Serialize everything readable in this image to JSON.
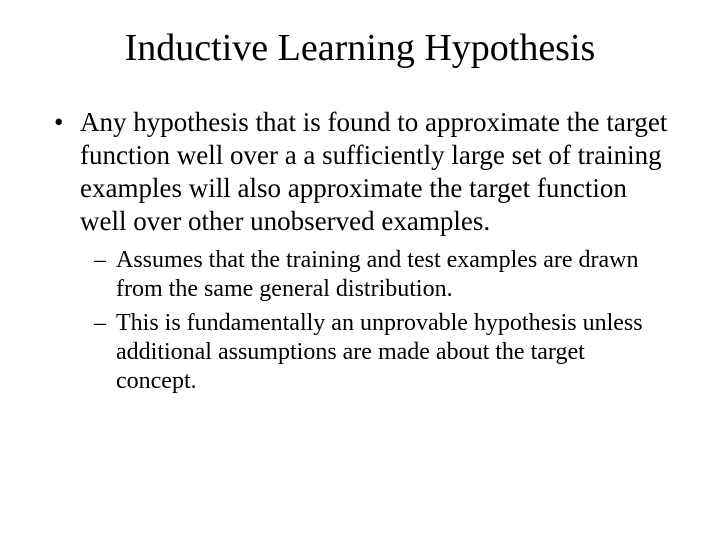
{
  "slide": {
    "title": "Inductive Learning Hypothesis",
    "bullets": [
      {
        "text": "Any hypothesis that is found to approximate the target function well over a a sufficiently large set of training examples will also approximate the target function well over other unobserved examples.",
        "sub": [
          {
            "text": "Assumes that the training and test examples are drawn from the same general distribution."
          },
          {
            "text": "This is fundamentally an unprovable hypothesis unless additional assumptions are made about the target concept."
          }
        ]
      }
    ]
  },
  "style": {
    "background_color": "#ffffff",
    "text_color": "#000000",
    "font_family": "Times New Roman",
    "title_fontsize": 38,
    "body_fontsize": 27,
    "sub_fontsize": 24
  }
}
